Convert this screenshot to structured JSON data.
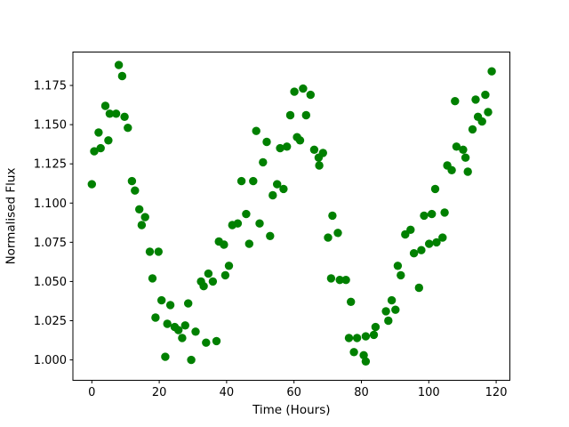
{
  "figure": {
    "background": "#ffffff",
    "frame_color": "#000000"
  },
  "chart_data": {
    "type": "scatter",
    "title": "",
    "xlabel": "Time (Hours)",
    "ylabel": "Normalised Flux",
    "marker_color": "#008000",
    "marker_radius_px": 4.7,
    "grid": false,
    "legend": null,
    "xlim": [
      -5.62,
      124.07
    ],
    "ylim": [
      0.987,
      1.1963
    ],
    "x_ticks": [
      0,
      20,
      40,
      60,
      80,
      100,
      120
    ],
    "x_tick_labels": [
      "0",
      "20",
      "40",
      "60",
      "80",
      "100",
      "120"
    ],
    "y_ticks": [
      1.0,
      1.025,
      1.05,
      1.075,
      1.1,
      1.125,
      1.15,
      1.175
    ],
    "y_tick_labels": [
      "1.000",
      "1.025",
      "1.050",
      "1.075",
      "1.100",
      "1.125",
      "1.150",
      "1.175"
    ],
    "points": [
      [
        0,
        1.112
      ],
      [
        0.7,
        1.133
      ],
      [
        2,
        1.145
      ],
      [
        2.6,
        1.135
      ],
      [
        4,
        1.162
      ],
      [
        4.9,
        1.14
      ],
      [
        5.3,
        1.157
      ],
      [
        7.2,
        1.157
      ],
      [
        8,
        1.188
      ],
      [
        9,
        1.181
      ],
      [
        9.7,
        1.155
      ],
      [
        10.7,
        1.148
      ],
      [
        11.9,
        1.114
      ],
      [
        12.8,
        1.108
      ],
      [
        14.1,
        1.096
      ],
      [
        14.8,
        1.086
      ],
      [
        15.8,
        1.091
      ],
      [
        17.2,
        1.069
      ],
      [
        18,
        1.052
      ],
      [
        18.9,
        1.027
      ],
      [
        19.8,
        1.069
      ],
      [
        20.7,
        1.038
      ],
      [
        21.8,
        1.002
      ],
      [
        22.4,
        1.023
      ],
      [
        23.3,
        1.035
      ],
      [
        24.6,
        1.021
      ],
      [
        25.7,
        1.019
      ],
      [
        26.8,
        1.014
      ],
      [
        27.7,
        1.022
      ],
      [
        28.6,
        1.036
      ],
      [
        29.5,
        1.0
      ],
      [
        30.8,
        1.018
      ],
      [
        32.4,
        1.05
      ],
      [
        33.2,
        1.047
      ],
      [
        33.9,
        1.011
      ],
      [
        34.6,
        1.055
      ],
      [
        35.9,
        1.05
      ],
      [
        37,
        1.012
      ],
      [
        37.7,
        1.0755
      ],
      [
        39.2,
        1.0735
      ],
      [
        39.6,
        1.054
      ],
      [
        40.7,
        1.06
      ],
      [
        41.7,
        1.086
      ],
      [
        43.3,
        1.087
      ],
      [
        44.4,
        1.114
      ],
      [
        45.8,
        1.093
      ],
      [
        46.7,
        1.074
      ],
      [
        47.9,
        1.114
      ],
      [
        48.8,
        1.146
      ],
      [
        49.8,
        1.087
      ],
      [
        50.8,
        1.126
      ],
      [
        51.9,
        1.139
      ],
      [
        52.9,
        1.079
      ],
      [
        53.7,
        1.105
      ],
      [
        55,
        1.112
      ],
      [
        55.9,
        1.135
      ],
      [
        56.9,
        1.109
      ],
      [
        57.9,
        1.136
      ],
      [
        58.9,
        1.156
      ],
      [
        60.1,
        1.171
      ],
      [
        60.9,
        1.142
      ],
      [
        61.8,
        1.14
      ],
      [
        62.7,
        1.173
      ],
      [
        63.6,
        1.156
      ],
      [
        64.9,
        1.169
      ],
      [
        66,
        1.134
      ],
      [
        67.3,
        1.129
      ],
      [
        67.5,
        1.124
      ],
      [
        68.6,
        1.132
      ],
      [
        70.1,
        1.078
      ],
      [
        71,
        1.052
      ],
      [
        71.4,
        1.092
      ],
      [
        73,
        1.081
      ],
      [
        73.6,
        1.051
      ],
      [
        75.4,
        1.051
      ],
      [
        76.3,
        1.014
      ],
      [
        76.9,
        1.037
      ],
      [
        77.8,
        1.005
      ],
      [
        78.7,
        1.014
      ],
      [
        80.7,
        1.003
      ],
      [
        81.3,
        0.999
      ],
      [
        81.3,
        1.015
      ],
      [
        83.7,
        1.016
      ],
      [
        84.2,
        1.021
      ],
      [
        87.3,
        1.031
      ],
      [
        88,
        1.025
      ],
      [
        89,
        1.038
      ],
      [
        90.1,
        1.032
      ],
      [
        90.8,
        1.06
      ],
      [
        91.7,
        1.054
      ],
      [
        93,
        1.08
      ],
      [
        94.6,
        1.083
      ],
      [
        95.6,
        1.068
      ],
      [
        97.1,
        1.046
      ],
      [
        97.8,
        1.07
      ],
      [
        98.6,
        1.092
      ],
      [
        100.1,
        1.074
      ],
      [
        100.9,
        1.093
      ],
      [
        101.9,
        1.109
      ],
      [
        102.3,
        1.075
      ],
      [
        104.1,
        1.078
      ],
      [
        104.7,
        1.094
      ],
      [
        105.5,
        1.124
      ],
      [
        106.8,
        1.121
      ],
      [
        107.8,
        1.165
      ],
      [
        108.2,
        1.136
      ],
      [
        110.2,
        1.134
      ],
      [
        110.9,
        1.129
      ],
      [
        111.6,
        1.12
      ],
      [
        113,
        1.147
      ],
      [
        113.9,
        1.166
      ],
      [
        114.6,
        1.155
      ],
      [
        115.8,
        1.152
      ],
      [
        116.8,
        1.169
      ],
      [
        117.6,
        1.158
      ],
      [
        118.7,
        1.184
      ]
    ]
  }
}
